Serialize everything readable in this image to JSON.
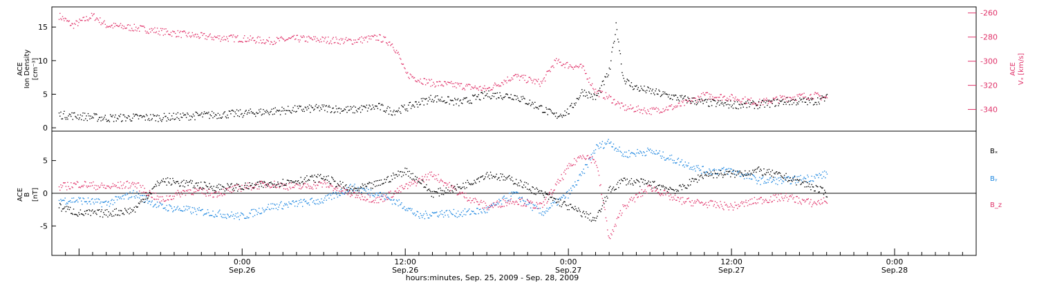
{
  "colors": {
    "black": "#000000",
    "red": "#e0336a",
    "blue": "#1c86e0"
  },
  "chart_data": [
    {
      "type": "scatter",
      "title": "",
      "xlabel": "hours:minutes, Sep. 25, 2009 - Sep. 28, 2009",
      "x_range_hours": [
        -14,
        54
      ],
      "x_ticks": [
        {
          "time": "0:00",
          "date": "Sep.26",
          "hours": 0
        },
        {
          "time": "12:00",
          "date": "Sep.26",
          "hours": 12
        },
        {
          "time": "0:00",
          "date": "Sep.27",
          "hours": 24
        },
        {
          "time": "12:00",
          "date": "Sep.27",
          "hours": 36
        },
        {
          "time": "0:00",
          "date": "Sep.28",
          "hours": 48
        }
      ],
      "left_axis": {
        "label_lines": [
          "ACE",
          "Ion Density",
          "[cm⁻³]"
        ],
        "ylim": [
          -0.5,
          18
        ],
        "ticks": [
          0,
          5,
          10,
          15
        ]
      },
      "right_axis": {
        "label_lines": [
          "ACE",
          "Vₓ [km/s]"
        ],
        "ylim": [
          -358,
          -255
        ],
        "ticks": [
          -260,
          -280,
          -300,
          -320,
          -340
        ]
      },
      "series": [
        {
          "name": "",
          "axis": "left",
          "color": "#000000",
          "keypoints_hours": [
            -13.5,
            -12,
            -10,
            -8,
            -6,
            -4,
            -2,
            0,
            2,
            4,
            6,
            8,
            10,
            11,
            12,
            13,
            14,
            16,
            18,
            20,
            22,
            23,
            24,
            25,
            26,
            27,
            27.5,
            28,
            28.5,
            29,
            30,
            32,
            34,
            36,
            38,
            40,
            42,
            43
          ],
          "keypoints_values": [
            2.0,
            1.8,
            1.5,
            1.6,
            1.6,
            1.8,
            2.0,
            2.2,
            2.5,
            2.8,
            3.0,
            2.7,
            3.2,
            2.5,
            3.0,
            3.8,
            4.5,
            3.8,
            5.0,
            4.8,
            3.0,
            1.8,
            2.5,
            5.5,
            4.5,
            8.5,
            15.5,
            7.5,
            6.5,
            6.0,
            5.5,
            4.5,
            3.8,
            3.5,
            3.5,
            4.0,
            4.0,
            4.5
          ],
          "keypoints_note": ""
        },
        {
          "name": "",
          "axis": "right",
          "color": "#e0336a",
          "keypoints_hours": [
            -13.5,
            -12.5,
            -11,
            -10,
            -8,
            -6,
            -4,
            -2,
            0,
            2,
            4,
            6,
            8,
            10,
            11,
            11.5,
            12,
            13,
            14,
            16,
            18,
            20,
            22,
            23,
            24,
            25,
            26,
            27,
            28,
            30,
            32,
            34,
            36,
            38,
            40,
            42,
            43
          ],
          "keypoints_values": [
            -262,
            -270,
            -262,
            -270,
            -272,
            -275,
            -278,
            -280,
            -281,
            -283,
            -281,
            -282,
            -283,
            -280,
            -285,
            -295,
            -310,
            -315,
            -318,
            -320,
            -323,
            -312,
            -318,
            -300,
            -303,
            -305,
            -325,
            -330,
            -338,
            -341,
            -337,
            -328,
            -330,
            -334,
            -330,
            -328,
            -330
          ]
        }
      ]
    },
    {
      "type": "scatter",
      "title": "",
      "left_axis": {
        "label_lines": [
          "ACE",
          "B",
          "[nT]"
        ],
        "ylim": [
          -9.5,
          9.5
        ],
        "ticks": [
          -5,
          0,
          5
        ]
      },
      "legend_placement": "right",
      "series": [
        {
          "name": "Bₓ",
          "color": "#000000",
          "keypoints_hours": [
            -13.5,
            -12,
            -10,
            -8,
            -6,
            -4,
            -2,
            0,
            2,
            4,
            6,
            8,
            10,
            12,
            13,
            14,
            16,
            18,
            20,
            22,
            24,
            25,
            26,
            27,
            28,
            30,
            32,
            34,
            36,
            38,
            40,
            42,
            43
          ],
          "keypoints_values": [
            -2,
            -3,
            -3,
            -2.5,
            2,
            1.5,
            1,
            1,
            1.5,
            2,
            2.5,
            0.5,
            1.5,
            3.5,
            2,
            0,
            1,
            3,
            2,
            0,
            -2,
            -3,
            -4,
            0.5,
            2,
            1.5,
            0.5,
            3,
            3,
            3.5,
            2.5,
            1,
            0
          ]
        },
        {
          "name": "Bᵧ",
          "color": "#1c86e0",
          "keypoints_hours": [
            -13.5,
            -12,
            -10,
            -8,
            -6,
            -4,
            -2,
            0,
            2,
            4,
            6,
            8,
            10,
            12,
            13,
            14,
            16,
            18,
            20,
            22,
            24,
            25,
            26,
            27,
            28,
            30,
            32,
            34,
            36,
            38,
            40,
            42,
            43
          ],
          "keypoints_values": [
            -1,
            -1,
            -1.5,
            0,
            -2,
            -2.5,
            -3,
            -3.5,
            -2,
            -1.5,
            -1,
            1,
            0,
            -2,
            -3.5,
            -3,
            -3,
            -2.5,
            0,
            -3,
            0,
            3,
            7,
            8,
            6,
            6.5,
            5,
            3.5,
            3.5,
            2,
            2,
            2.5,
            3
          ]
        },
        {
          "name": "B_z",
          "color": "#e0336a",
          "keypoints_hours": [
            -13.5,
            -12,
            -10,
            -8,
            -6,
            -4,
            -2,
            0,
            2,
            4,
            6,
            8,
            10,
            12,
            13,
            14,
            16,
            18,
            20,
            22,
            24,
            25,
            26,
            27,
            28,
            30,
            32,
            34,
            36,
            38,
            40,
            42,
            43
          ],
          "keypoints_values": [
            1,
            1.5,
            1,
            1.5,
            -1,
            0.5,
            0,
            1,
            1.5,
            1,
            1.5,
            0,
            -1,
            1,
            2,
            3,
            0,
            -2,
            -1,
            -2,
            4,
            6,
            5,
            -7,
            -2,
            1,
            -1,
            -1.5,
            -2,
            -1,
            -0.5,
            -1.5,
            -1
          ]
        }
      ]
    }
  ]
}
